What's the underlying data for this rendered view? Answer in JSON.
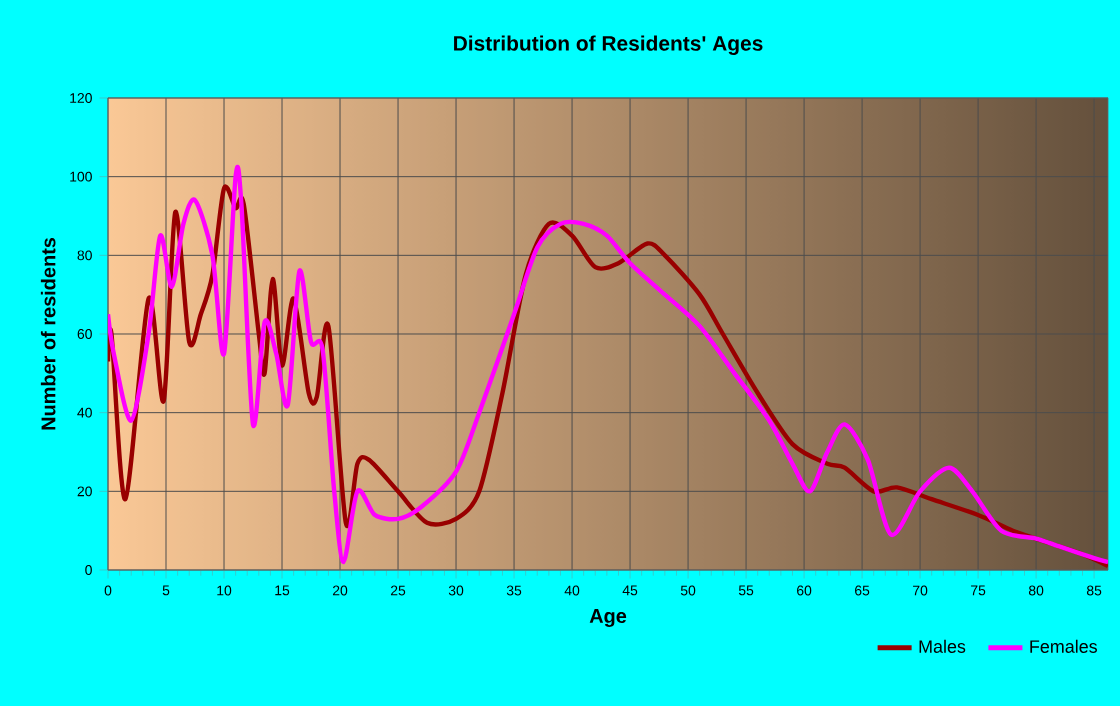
{
  "chart_data": {
    "type": "line",
    "title": "Distribution of Residents' Ages",
    "xlabel": "Age",
    "ylabel": "Number of residents",
    "xlim": [
      0,
      86.2
    ],
    "ylim": [
      0,
      120
    ],
    "xticks": [
      0,
      5,
      10,
      15,
      20,
      25,
      30,
      35,
      40,
      45,
      50,
      55,
      60,
      65,
      70,
      75,
      80,
      85
    ],
    "yticks": [
      0,
      20,
      40,
      60,
      80,
      100,
      120
    ],
    "grid": true,
    "legend": "bottom right",
    "marker": "none",
    "line_style": "solid",
    "series": [
      {
        "name": "Males",
        "color": "#990000",
        "x": [
          0,
          0.3,
          1.5,
          3.5,
          4.8,
          5.8,
          7,
          8,
          9,
          10,
          11,
          11.7,
          13,
          13.5,
          14.2,
          15,
          16,
          17.3,
          18,
          19,
          20.5,
          21.5,
          22.5,
          25,
          27.5,
          30,
          32,
          34,
          36,
          38,
          40,
          42,
          44,
          46.5,
          48,
          51,
          53,
          56,
          59,
          62,
          63.5,
          66,
          68,
          71,
          75,
          78,
          81,
          84,
          86.2
        ],
        "values": [
          53,
          60,
          18,
          69,
          43,
          91,
          58,
          65,
          75,
          97,
          92,
          93,
          60,
          50,
          74,
          52,
          69,
          45,
          44,
          62,
          12,
          27,
          28,
          20,
          12,
          13,
          20,
          45,
          75,
          88,
          85,
          77,
          78,
          83,
          80,
          70,
          60,
          45,
          32,
          27,
          26,
          20,
          21,
          18,
          14,
          10,
          7,
          4,
          1
        ]
      },
      {
        "name": "Females",
        "color": "#ff00ff",
        "x": [
          0,
          0.5,
          2,
          3.5,
          4.5,
          5.5,
          6.5,
          7.5,
          9,
          10,
          11,
          11.5,
          12.5,
          13.5,
          14.5,
          15.5,
          16.5,
          17.5,
          18.5,
          19.5,
          20.3,
          21.5,
          23,
          25,
          27,
          30,
          32,
          35,
          37,
          39,
          41,
          43,
          45,
          48,
          51,
          54,
          57,
          59,
          60.5,
          62,
          63.5,
          65.5,
          67.5,
          70,
          72.5,
          74.5,
          77,
          80,
          82,
          85,
          86.2
        ],
        "values": [
          65,
          55,
          38,
          60,
          85,
          72,
          88,
          94,
          80,
          55,
          100,
          93,
          37,
          63,
          55,
          42,
          76,
          58,
          56,
          20,
          2,
          20,
          14,
          13,
          16,
          25,
          40,
          65,
          82,
          88,
          88,
          85,
          78,
          70,
          62,
          50,
          38,
          27,
          20,
          30,
          37,
          28,
          9,
          20,
          26,
          20,
          10,
          8,
          6,
          3,
          2
        ]
      }
    ]
  }
}
